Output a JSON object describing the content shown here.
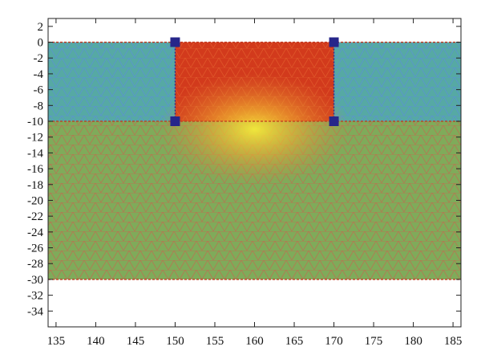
{
  "chart_data": {
    "type": "heatmap",
    "title": "",
    "xlabel": "",
    "ylabel": "",
    "xlim": [
      134,
      186
    ],
    "ylim": [
      -36,
      3
    ],
    "x_ticks": [
      135,
      140,
      145,
      150,
      155,
      160,
      165,
      170,
      175,
      180,
      185
    ],
    "y_ticks": [
      2,
      0,
      -2,
      -4,
      -6,
      -8,
      -10,
      -12,
      -14,
      -16,
      -18,
      -20,
      -22,
      -24,
      -26,
      -28,
      -30,
      -32,
      -34
    ],
    "grid": false,
    "regions": [
      {
        "x": [
          134,
          186
        ],
        "y": [
          -30,
          -10
        ],
        "fill": "#7fab5a",
        "mesh": "#d9534a"
      },
      {
        "x": [
          134,
          150
        ],
        "y": [
          -10,
          0
        ],
        "fill": "#56a9a4",
        "mesh": "#5a8fd8"
      },
      {
        "x": [
          170,
          186
        ],
        "y": [
          -10,
          0
        ],
        "fill": "#56a9a4",
        "mesh": "#5a8fd8"
      },
      {
        "x": [
          150,
          170
        ],
        "y": [
          -10,
          0
        ],
        "fill": "#d23a1c",
        "mesh": "#e25a30"
      }
    ],
    "hotspot": {
      "x": 160,
      "y": -10,
      "color": "#f0e23a"
    },
    "boundary_lines_y": [
      0,
      -10,
      -30
    ],
    "corner_markers": [
      {
        "x": 150,
        "y": 0
      },
      {
        "x": 170,
        "y": 0
      },
      {
        "x": 150,
        "y": -10
      },
      {
        "x": 170,
        "y": -10
      }
    ],
    "marker_color": "#26268a"
  }
}
